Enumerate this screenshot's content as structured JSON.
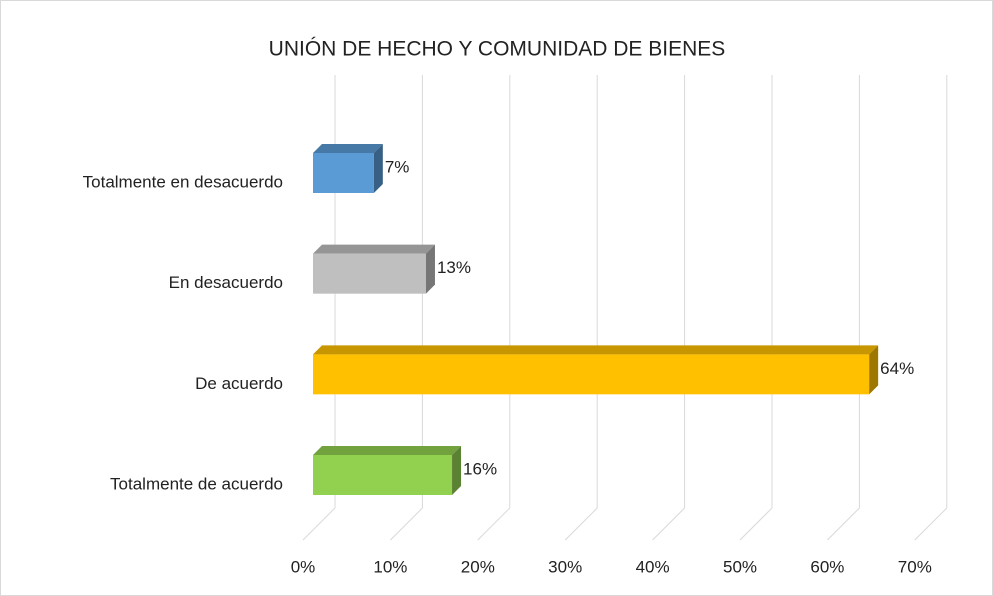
{
  "chart_data": {
    "type": "bar3d_horizontal",
    "title": "UNIÓN DE HECHO Y COMUNIDAD DE BIENES",
    "categories": [
      "Totalmente en desacuerdo",
      "En desacuerdo",
      "De acuerdo",
      "Totalmente de acuerdo"
    ],
    "values": [
      7,
      13,
      64,
      16
    ],
    "value_labels": [
      "7%",
      "13%",
      "64%",
      "16%"
    ],
    "colors": [
      "#5b9bd5",
      "#bfbfbf",
      "#ffc000",
      "#92d050"
    ],
    "xlim": [
      0,
      70
    ],
    "xticks": [
      {
        "value": 0,
        "label": "0%"
      },
      {
        "value": 10,
        "label": "10%"
      },
      {
        "value": 20,
        "label": "20%"
      },
      {
        "value": 30,
        "label": "30%"
      },
      {
        "value": 40,
        "label": "40%"
      },
      {
        "value": 50,
        "label": "50%"
      },
      {
        "value": 60,
        "label": "60%"
      },
      {
        "value": 70,
        "label": "70%"
      }
    ],
    "grid": true
  }
}
